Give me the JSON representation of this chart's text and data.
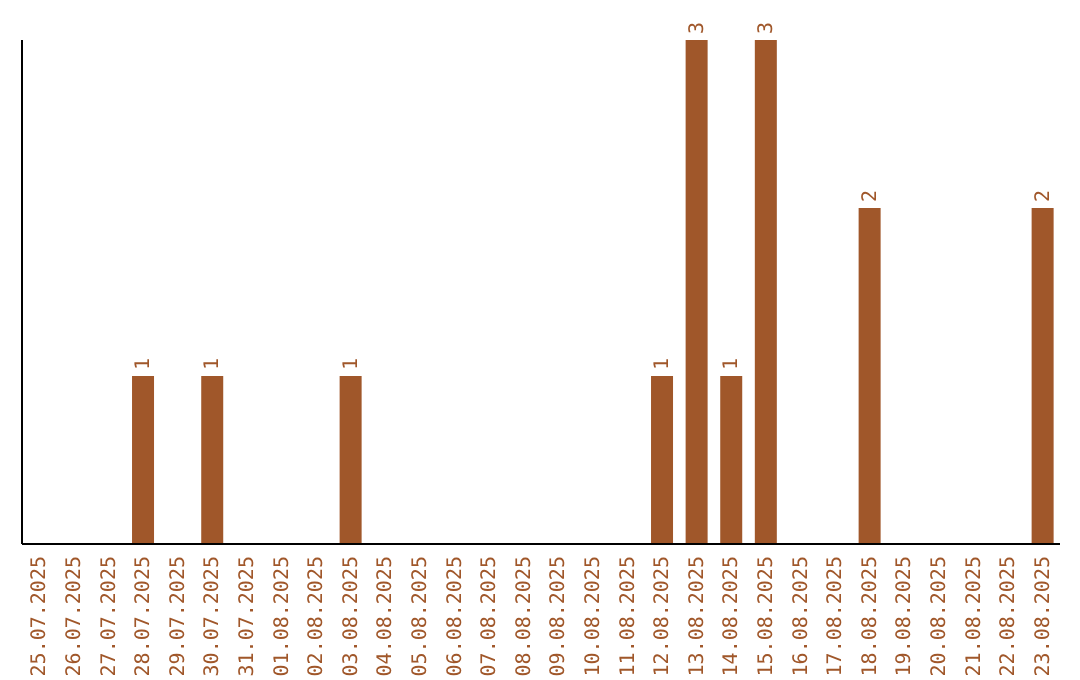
{
  "chart_data": {
    "type": "bar",
    "categories": [
      "25.07.2025",
      "26.07.2025",
      "27.07.2025",
      "28.07.2025",
      "29.07.2025",
      "30.07.2025",
      "31.07.2025",
      "01.08.2025",
      "02.08.2025",
      "03.08.2025",
      "04.08.2025",
      "05.08.2025",
      "06.08.2025",
      "07.08.2025",
      "08.08.2025",
      "09.08.2025",
      "10.08.2025",
      "11.08.2025",
      "12.08.2025",
      "13.08.2025",
      "14.08.2025",
      "15.08.2025",
      "16.08.2025",
      "17.08.2025",
      "18.08.2025",
      "19.08.2025",
      "20.08.2025",
      "21.08.2025",
      "22.08.2025",
      "23.08.2025"
    ],
    "values": [
      0,
      0,
      0,
      1,
      0,
      1,
      0,
      0,
      0,
      1,
      0,
      0,
      0,
      0,
      0,
      0,
      0,
      0,
      1,
      3,
      1,
      3,
      0,
      0,
      2,
      0,
      0,
      0,
      0,
      2
    ],
    "value_labels": [
      null,
      null,
      null,
      "1",
      null,
      "1",
      null,
      null,
      null,
      "1",
      null,
      null,
      null,
      null,
      null,
      null,
      null,
      null,
      "1",
      "3",
      "1",
      "3",
      null,
      null,
      "2",
      null,
      null,
      null,
      null,
      "2"
    ],
    "color": "#a0572a",
    "grid": false,
    "legend": false,
    "tick_labels": "x"
  }
}
